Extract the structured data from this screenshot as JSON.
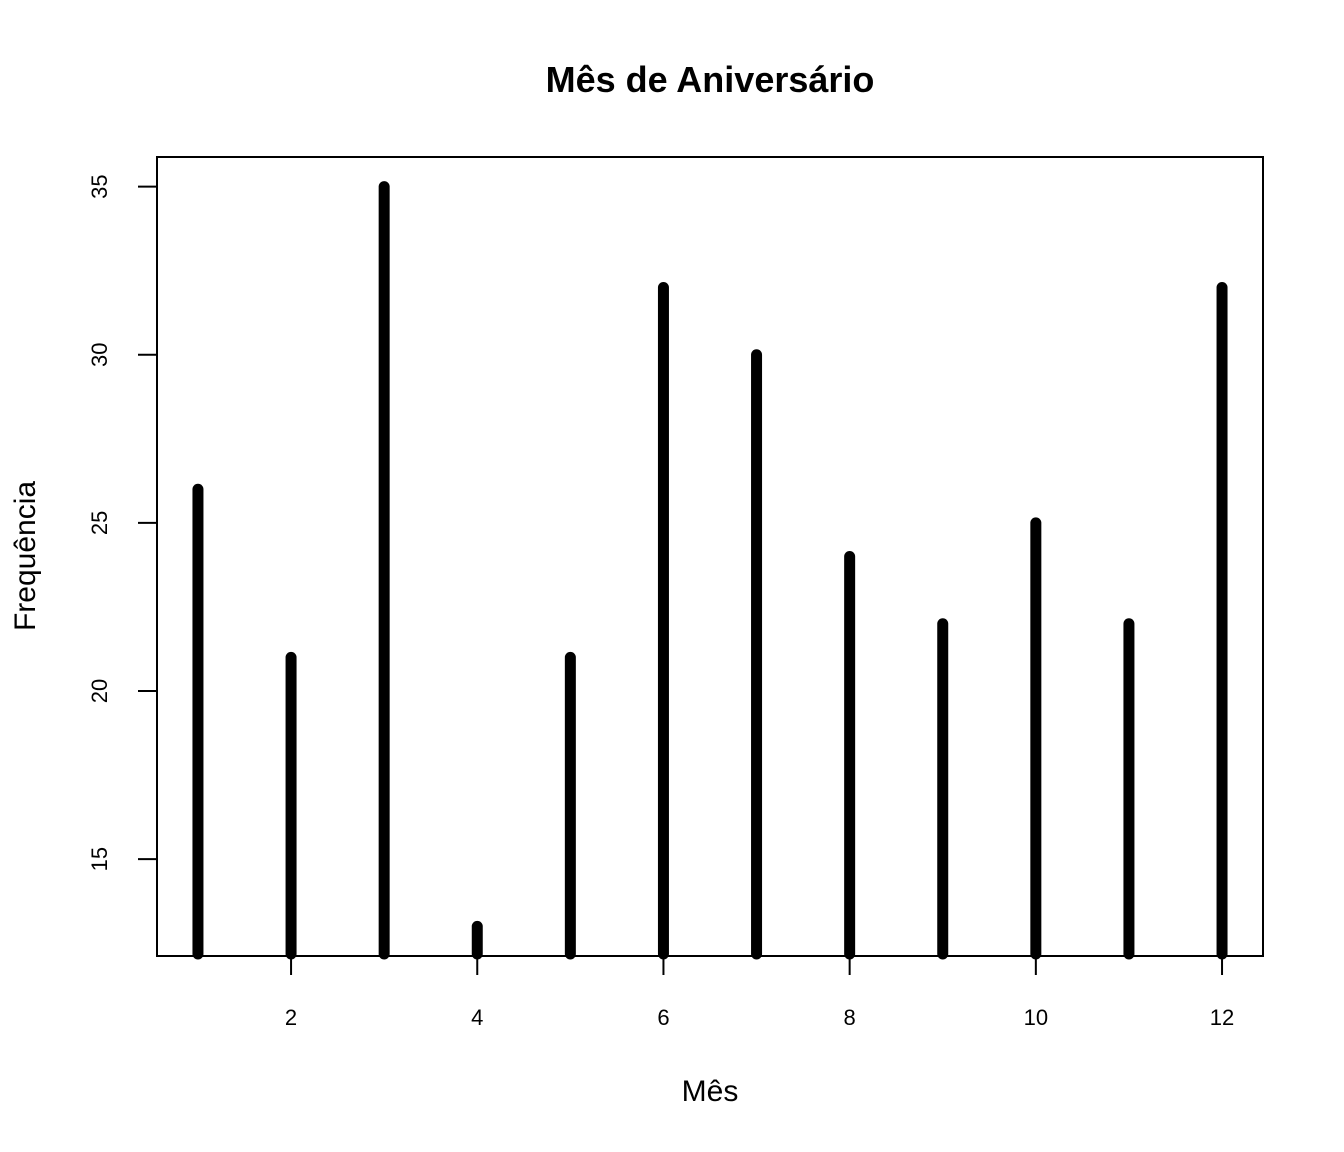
{
  "chart_data": {
    "type": "bar",
    "style": "vertical spikes (type='h')",
    "title": "Mês de Aniversário",
    "xlabel": "Mês",
    "ylabel": "Frequência",
    "x": [
      1,
      2,
      3,
      4,
      5,
      6,
      7,
      8,
      9,
      10,
      11,
      12
    ],
    "values": [
      26,
      21,
      35,
      13,
      21,
      32,
      30,
      24,
      22,
      25,
      22,
      32
    ],
    "xlim": [
      0.56,
      12.44
    ],
    "ylim": [
      12.12,
      35.88
    ],
    "x_ticks": [
      2,
      4,
      6,
      8,
      10,
      12
    ],
    "y_ticks": [
      15,
      20,
      25,
      30,
      35
    ],
    "x_tick_labels": [
      "2",
      "4",
      "6",
      "8",
      "10",
      "12"
    ],
    "y_tick_labels": [
      "15",
      "20",
      "25",
      "30",
      "35"
    ],
    "grid": false,
    "legend": "none",
    "color": "#000000"
  }
}
